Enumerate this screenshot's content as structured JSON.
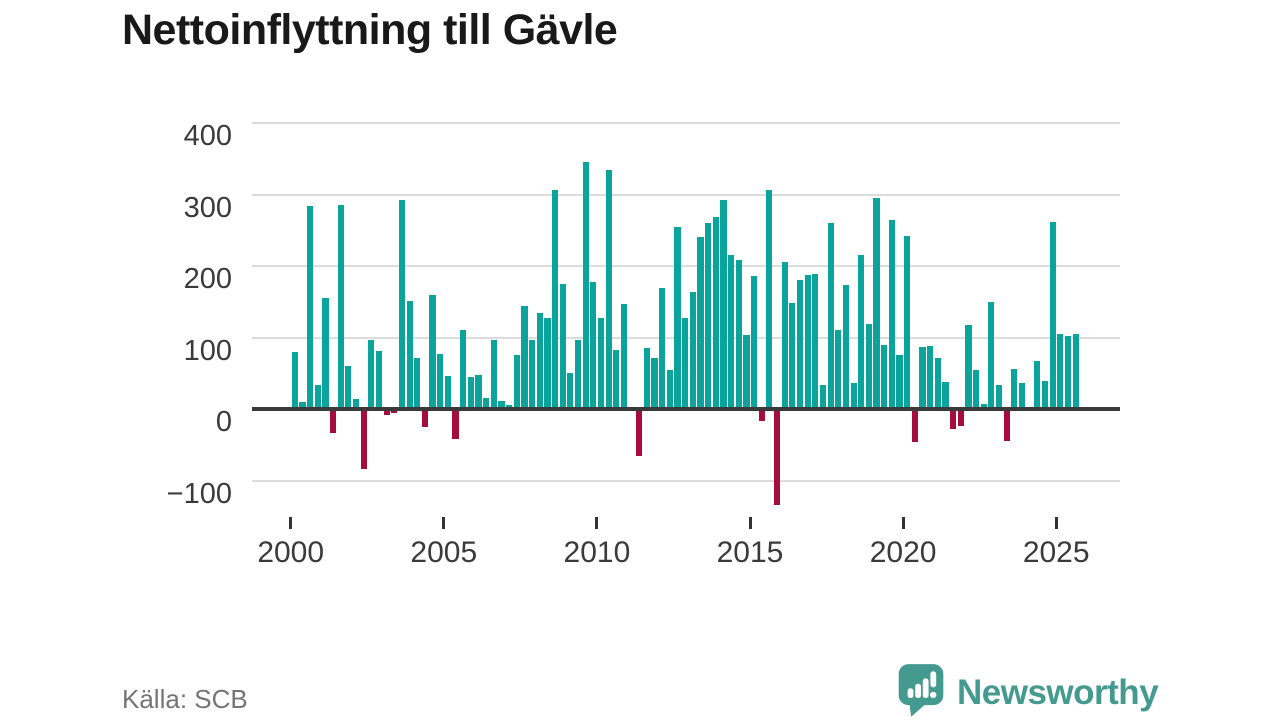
{
  "chart": {
    "title": "Nettoinflyttning till Gävle",
    "source": "Källa: SCB"
  },
  "branding": {
    "logo_text": "Newsworthy",
    "logo_icon": "newsworthy-speech-bubble-chart-icon",
    "logo_color": "#459a90"
  },
  "chart_data": {
    "type": "bar",
    "title": "Nettoinflyttning till Gävle",
    "subtitle": "",
    "xlabel": "",
    "ylabel": "",
    "frequency": "quarterly",
    "grid": "horizontal",
    "legend": "none",
    "x_tick_labels": [
      "2000",
      "2005",
      "2010",
      "2015",
      "2020",
      "2025"
    ],
    "y_tick_labels": [
      "400",
      "300",
      "200",
      "100",
      "0",
      "−100"
    ],
    "y_tick_values": [
      400,
      300,
      200,
      100,
      0,
      -100
    ],
    "ylim": [
      -150,
      430
    ],
    "colors": {
      "positive": "#0ba49c",
      "negative": "#a50d3d",
      "axis": "#3a3a3a",
      "gridline": "#dcdcdc"
    },
    "quarters": [
      "2000 Q1",
      "2000 Q2",
      "2000 Q3",
      "2000 Q4",
      "2001 Q1",
      "2001 Q2",
      "2001 Q3",
      "2001 Q4",
      "2002 Q1",
      "2002 Q2",
      "2002 Q3",
      "2002 Q4",
      "2003 Q1",
      "2003 Q2",
      "2003 Q3",
      "2003 Q4",
      "2004 Q1",
      "2004 Q2",
      "2004 Q3",
      "2004 Q4",
      "2005 Q1",
      "2005 Q2",
      "2005 Q3",
      "2005 Q4",
      "2006 Q1",
      "2006 Q2",
      "2006 Q3",
      "2006 Q4",
      "2007 Q1",
      "2007 Q2",
      "2007 Q3",
      "2007 Q4",
      "2008 Q1",
      "2008 Q2",
      "2008 Q3",
      "2008 Q4",
      "2009 Q1",
      "2009 Q2",
      "2009 Q3",
      "2009 Q4",
      "2010 Q1",
      "2010 Q2",
      "2010 Q3",
      "2010 Q4",
      "2011 Q1",
      "2011 Q2",
      "2011 Q3",
      "2011 Q4",
      "2012 Q1",
      "2012 Q2",
      "2012 Q3",
      "2012 Q4",
      "2013 Q1",
      "2013 Q2",
      "2013 Q3",
      "2013 Q4",
      "2014 Q1",
      "2014 Q2",
      "2014 Q3",
      "2014 Q4",
      "2015 Q1",
      "2015 Q2",
      "2015 Q3",
      "2015 Q4",
      "2016 Q1",
      "2016 Q2",
      "2016 Q3",
      "2016 Q4",
      "2017 Q1",
      "2017 Q2",
      "2017 Q3",
      "2017 Q4",
      "2018 Q1",
      "2018 Q2",
      "2018 Q3",
      "2018 Q4",
      "2019 Q1",
      "2019 Q2",
      "2019 Q3",
      "2019 Q4",
      "2020 Q1",
      "2020 Q2",
      "2020 Q3",
      "2020 Q4",
      "2021 Q1",
      "2021 Q2",
      "2021 Q3",
      "2021 Q4",
      "2022 Q1",
      "2022 Q2",
      "2022 Q3",
      "2022 Q4",
      "2023 Q1",
      "2023 Q2",
      "2023 Q3",
      "2023 Q4",
      "2024 Q1",
      "2024 Q2",
      "2024 Q3",
      "2024 Q4",
      "2025 Q1",
      "2025 Q2",
      "2025 Q3"
    ],
    "values": [
      80,
      10,
      284,
      34,
      155,
      -33,
      286,
      60,
      14,
      -84,
      97,
      81,
      -8,
      -5,
      293,
      151,
      72,
      -25,
      159,
      77,
      46,
      -41,
      110,
      45,
      48,
      15,
      97,
      12,
      6,
      76,
      144,
      97,
      134,
      128,
      306,
      175,
      51,
      97,
      346,
      178,
      127,
      334,
      83,
      147,
      0,
      -65,
      86,
      72,
      169,
      55,
      254,
      128,
      164,
      240,
      260,
      268,
      292,
      215,
      209,
      104,
      186,
      -17,
      307,
      -134,
      206,
      149,
      180,
      188,
      189,
      34,
      260,
      111,
      174,
      37,
      215,
      119,
      295,
      90,
      264,
      76,
      242,
      -46,
      87,
      89,
      71,
      38,
      -28,
      -23,
      118,
      55,
      7,
      150,
      34,
      -44,
      56,
      36,
      0,
      67,
      39,
      261,
      105,
      103,
      105
    ]
  }
}
